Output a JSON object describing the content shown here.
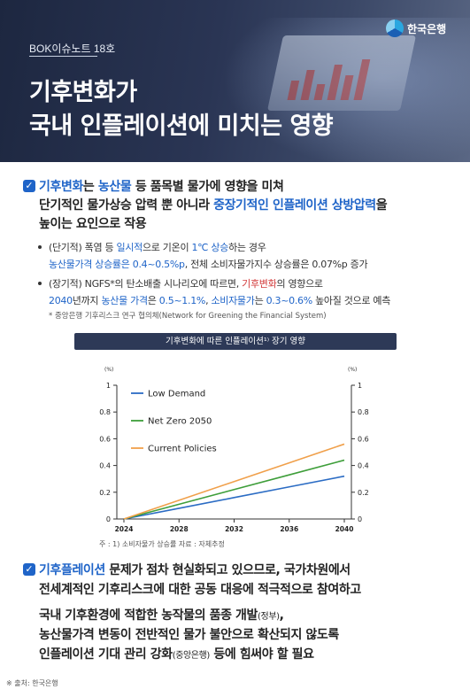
{
  "header": {
    "tag": "BOK이슈노트 18호",
    "title_line1": "기후변화가",
    "title_line2": "국내 인플레이션에 미치는 영향",
    "logo_text": "한국은행"
  },
  "section1": {
    "line1_a": "기후변화",
    "line1_b": "는 ",
    "line1_c": "농산물",
    "line1_d": " 등 품목별 물가에 영향을 미쳐",
    "line2_a": "단기적인 물가상승 압력 뿐 아니라 ",
    "line2_b": "중장기적인 인플레이션 상방압력",
    "line2_c": "을",
    "line3": "높이는 요인으로 작용",
    "b1_l1_a": "(단기적) 폭염 등 ",
    "b1_l1_b": "일시적",
    "b1_l1_c": "으로 기온이 ",
    "b1_l1_d": "1℃ 상승",
    "b1_l1_e": "하는 경우",
    "b1_l2_a": "농산물가격 상승률은 0.4~0.5%p",
    "b1_l2_b": ", 전체 소비자물가지수 상승률은 0.07%p 증가",
    "b2_l1_a": "(장기적) NGFS*의 탄소배출 시나리오에 따르면, ",
    "b2_l1_b": "기후변화",
    "b2_l1_c": "의 영향으로",
    "b2_l2_a": "2040",
    "b2_l2_b": "년까지 ",
    "b2_l2_c": "농산물 가격",
    "b2_l2_d": "은 ",
    "b2_l2_e": "0.5~1.1%",
    "b2_l2_f": ", ",
    "b2_l2_g": "소비자물가",
    "b2_l2_h": "는 ",
    "b2_l2_i": "0.3~0.6%",
    "b2_l2_j": " 높아질 것으로 예측",
    "b2_note": "* 중앙은행 기후리스크 연구 협의체(Network for Greening the Financial System)"
  },
  "chart_data": {
    "type": "line",
    "title": "기후변화에 따른 인플레이션¹⁾ 장기 영향",
    "x": [
      2024,
      2028,
      2032,
      2036,
      2040
    ],
    "series": [
      {
        "name": "Low Demand",
        "color": "#2b6cc4",
        "values": [
          0,
          0.08,
          0.16,
          0.24,
          0.32
        ]
      },
      {
        "name": "Net Zero 2050",
        "color": "#3e9e3a",
        "values": [
          0,
          0.11,
          0.22,
          0.33,
          0.44
        ]
      },
      {
        "name": "Current Policies",
        "color": "#f0a04b",
        "values": [
          0,
          0.14,
          0.28,
          0.42,
          0.56
        ]
      }
    ],
    "ylim": [
      0,
      1
    ],
    "yticks": [
      "0",
      "0.2",
      "0.4",
      "0.6",
      "0.8",
      "1"
    ],
    "ytick_values": [
      0,
      0.2,
      0.4,
      0.6,
      0.8,
      1
    ],
    "yunit_left": "(%)",
    "yunit_right": "(%)",
    "xticks": [
      "2024",
      "2028",
      "2032",
      "2036",
      "2040"
    ],
    "legend": "top-left",
    "note": "주 : 1) 소비자물가 상승률    자료 : 자체추정"
  },
  "section2": {
    "l1_a": "기후플레이션",
    "l1_b": " 문제가 점차 현실화되고 있으므로, 국가차원에서",
    "l2": "전세계적인 기후리스크에 대한 공동 대응에 적극적으로 참여하고",
    "l3_a": "국내 기후환경에 적합한 농작물의 품종 개발",
    "l3_b": "(정부)",
    "l3_c": ",",
    "l4": "농산물가격 변동이 전반적인 물가 불안으로 확산되지 않도록",
    "l5_a": "인플레이션 기대 관리 강화",
    "l5_b": "(중앙은행)",
    "l5_c": " 등에 힘써야 할 필요"
  },
  "footer": {
    "source": "※ 출처: 한국은행"
  }
}
